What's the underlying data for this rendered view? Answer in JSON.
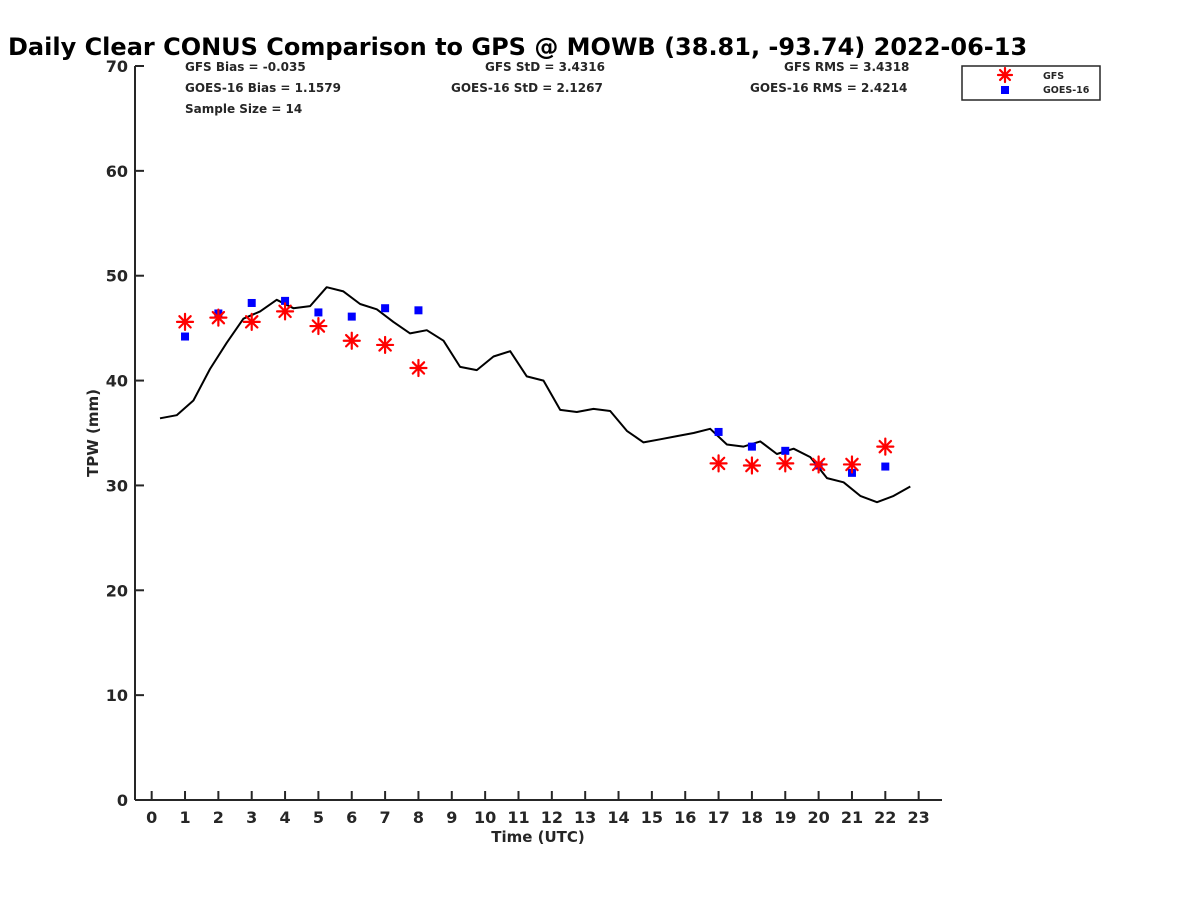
{
  "chart_data": {
    "type": "scatter",
    "title": "Daily Clear CONUS Comparison to GPS @ MOWB (38.81, -93.74) 2022-06-13",
    "xlabel": "Time (UTC)",
    "ylabel": "TPW (mm)",
    "xlim": [
      -0.5,
      23.7
    ],
    "ylim": [
      0,
      70
    ],
    "xticks": [
      "0",
      "1",
      "2",
      "3",
      "4",
      "5",
      "6",
      "7",
      "8",
      "9",
      "10",
      "11",
      "12",
      "13",
      "14",
      "15",
      "16",
      "17",
      "18",
      "19",
      "20",
      "21",
      "22",
      "23"
    ],
    "yticks": [
      "0",
      "10",
      "20",
      "30",
      "40",
      "50",
      "60",
      "70"
    ],
    "grid": false,
    "legend_position": "top-right",
    "stats": {
      "gfs_bias": "GFS Bias = -0.035",
      "goes_bias": "GOES-16 Bias = 1.1579",
      "sample_size": "Sample Size = 14",
      "gfs_std": "GFS StD = 3.4316",
      "goes_std": "GOES-16 StD = 2.1267",
      "gfs_rms": "GFS RMS = 3.4318",
      "goes_rms": "GOES-16 RMS = 2.4214"
    },
    "series": [
      {
        "name": "GFS",
        "marker": "asterisk",
        "color": "#ff0000",
        "x": [
          1,
          2,
          3,
          4,
          5,
          6,
          7,
          8,
          17,
          18,
          19,
          20,
          21,
          22
        ],
        "y": [
          45.6,
          46.0,
          45.6,
          46.6,
          45.2,
          43.8,
          43.4,
          41.2,
          32.1,
          31.9,
          32.1,
          32.0,
          32.0,
          33.7
        ]
      },
      {
        "name": "GOES-16",
        "marker": "square",
        "color": "#0000ff",
        "x": [
          1,
          2,
          3,
          4,
          5,
          6,
          7,
          8,
          17,
          18,
          19,
          20,
          21,
          22
        ],
        "y": [
          44.2,
          46.4,
          47.4,
          47.6,
          46.5,
          46.1,
          46.9,
          46.7,
          35.1,
          33.7,
          33.3,
          31.9,
          31.2,
          31.8
        ]
      },
      {
        "marker": "line",
        "color": "#000000",
        "x": [
          0.25,
          0.75,
          1.25,
          1.75,
          2.25,
          2.75,
          3.25,
          3.75,
          4.25,
          4.75,
          5.25,
          5.75,
          6.25,
          6.75,
          7.25,
          7.75,
          8.25,
          8.75,
          9.25,
          9.75,
          10.25,
          10.75,
          11.25,
          11.75,
          12.25,
          12.75,
          13.25,
          13.75,
          14.25,
          14.75,
          15.25,
          15.75,
          16.25,
          16.75,
          17.25,
          17.75,
          18.25,
          18.75,
          19.25,
          19.75,
          20.25,
          20.75,
          21.25,
          21.75,
          22.25,
          22.75
        ],
        "y": [
          36.4,
          36.7,
          38.1,
          41.1,
          43.6,
          45.9,
          46.6,
          47.7,
          46.9,
          47.1,
          48.9,
          48.5,
          47.3,
          46.8,
          45.6,
          44.5,
          44.8,
          43.8,
          41.3,
          41.0,
          42.3,
          42.8,
          40.4,
          40.0,
          37.2,
          37.0,
          37.3,
          37.1,
          35.2,
          34.1,
          34.4,
          34.7,
          35.0,
          35.4,
          33.9,
          33.7,
          34.2,
          33.0,
          33.5,
          32.7,
          30.7,
          30.3,
          29.0,
          28.4,
          29.0,
          29.9
        ]
      }
    ]
  }
}
